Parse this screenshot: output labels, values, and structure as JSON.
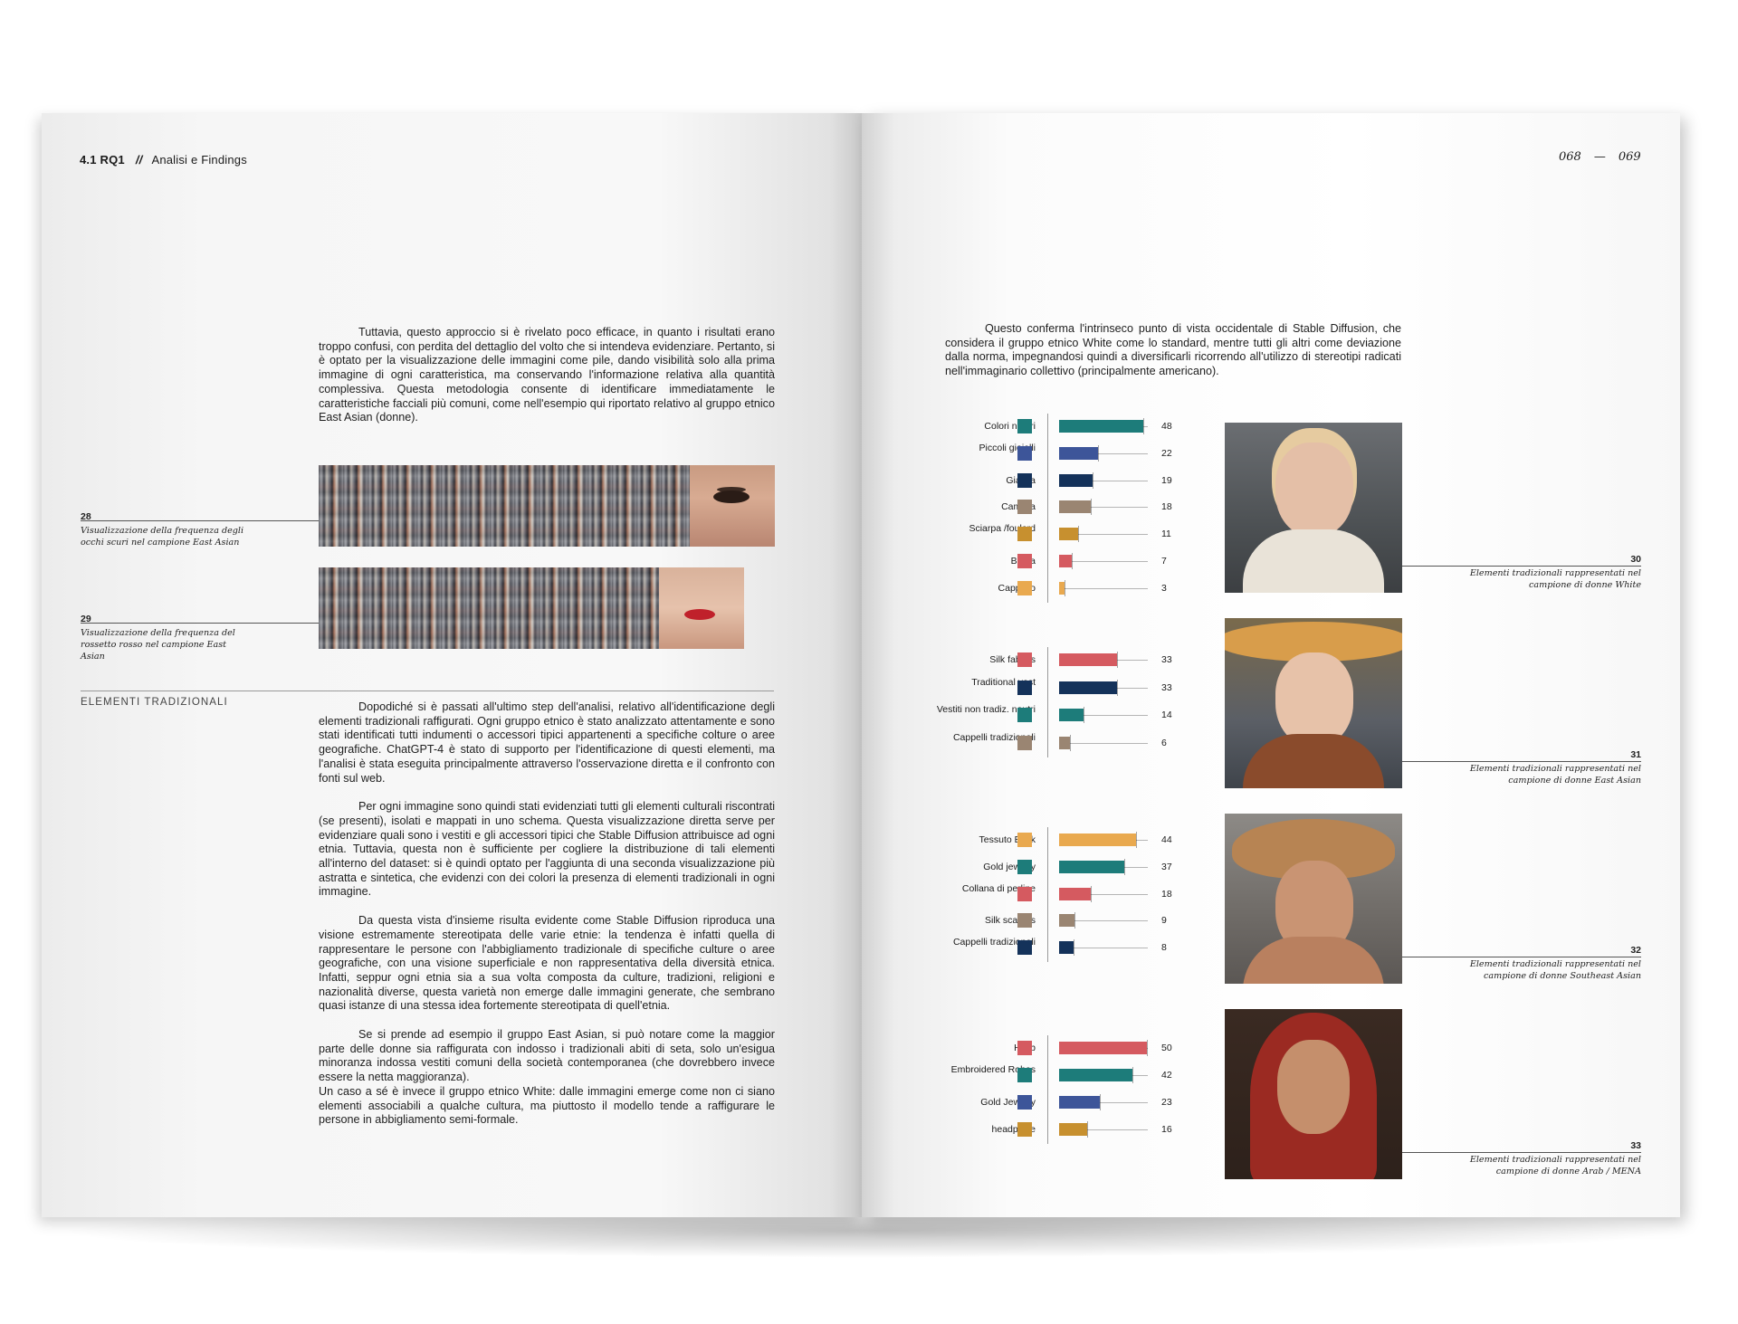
{
  "header": {
    "chapter": "4.1 RQ1",
    "separator": "//",
    "section": "Analisi e Findings",
    "page_left": "068",
    "page_sep": "—",
    "page_right": "069"
  },
  "left": {
    "intro": "Tuttavia, questo approccio si è rivelato poco efficace, in quanto i risultati erano troppo confusi, con perdita del dettaglio del volto che si intendeva evidenziare. Pertanto, si è optato per la visualizzazione delle immagini come pile, dando visibilità solo alla prima immagine di ogni caratteristica, ma conservando l'informazione relativa alla quantità complessiva. Questa metodologia consente di identificare immediatamente le caratteristiche facciali più comuni, come nell'esempio qui riportato relativo al gruppo etnico East Asian (donne).",
    "figures": [
      {
        "number": "28",
        "caption": "Visualizzazione della frequenza degli occhi scuri nel campione East Asian"
      },
      {
        "number": "29",
        "caption": "Visualizzazione della frequenza del rossetto rosso nel campione East Asian"
      }
    ],
    "section_label": "ELEMENTI TRADIZIONALI",
    "paragraphs": [
      "Dopodiché si è passati all'ultimo step dell'analisi, relativo all'identificazione degli elementi tradizionali raffigurati. Ogni gruppo etnico è stato analizzato attentamente e sono stati identificati tutti indumenti o accessori tipici appartenenti a specifiche colture o aree geografiche. ChatGPT-4 è stato di supporto per l'identificazione di questi elementi, ma l'analisi è stata eseguita principalmente attraverso l'osservazione diretta e il confronto con fonti sul web.",
      "Per ogni immagine sono quindi stati evidenziati tutti gli elementi culturali riscontrati (se presenti), isolati e mappati in uno schema. Questa visualizzazione diretta serve per evidenziare quali sono i vestiti e gli accessori tipici che Stable Diffusion attribuisce ad ogni etnia. Tuttavia, questa non è sufficiente per cogliere la distribuzione di tali elementi all'interno del dataset: si è quindi optato per l'aggiunta di una seconda visualizzazione più astratta e sintetica, che evidenzi con dei colori la presenza di elementi tradizionali in ogni immagine.",
      "Da questa vista d'insieme risulta evidente come Stable Diffusion riproduca una visione estremamente stereotipata delle varie etnie: la tendenza è infatti quella di rappresentare le persone con l'abbigliamento tradizionale di specifiche culture o aree geografiche, con una visione superficiale e non rappresentativa della diversità etnica. Infatti, seppur ogni etnia sia a sua volta composta da culture, tradizioni, religioni e nazionalità diverse, questa varietà non emerge dalle immagini generate, che sembrano quasi istanze di una stessa idea fortemente stereotipata di quell'etnia.",
      "Se si prende ad esempio il gruppo East Asian, si può notare come la maggior parte delle donne sia raffigurata con indosso i tradizionali abiti di seta, solo un'esigua minoranza indossa vestiti comuni della società contemporanea (che dovrebbero invece essere la netta maggioranza).",
      "Un caso a sé è invece il gruppo etnico White: dalle immagini emerge come non ci siano elementi associabili a qualche cultura, ma piuttosto il modello tende a raffigurare le persone in abbigliamento semi-formale."
    ]
  },
  "right": {
    "intro": "Questo conferma l'intrinseco punto di vista occidentale di Stable Diffusion, che considera il gruppo etnico White come lo standard, mentre tutti gli altri come deviazione dalla norma, impegnandosi quindi a diversificarli ricorrendo all'utilizzo di stereotipi radicati nell'immaginario collettivo (principalmente americano).",
    "captions": [
      {
        "number": "30",
        "caption": "Elementi tradizionali rappresentati nel campione di donne White"
      },
      {
        "number": "31",
        "caption": "Elementi tradizionali rappresentati nel campione di donne East Asian"
      },
      {
        "number": "32",
        "caption": "Elementi tradizionali rappresentati nel campione di donne Southeast Asian"
      },
      {
        "number": "33",
        "caption": "Elementi tradizionali rappresentati nel campione di donne Arab / MENA"
      }
    ]
  },
  "chart_data": [
    {
      "type": "bar",
      "orientation": "horizontal",
      "categories": [
        "Colori neutri",
        "Piccoli gioielli",
        "Giacca",
        "Camicia",
        "Sciarpa /foulard",
        "Borsa",
        "Cappello"
      ],
      "values": [
        48,
        22,
        19,
        18,
        11,
        7,
        3
      ],
      "colors": [
        "#1d7c7a",
        "#3d5599",
        "#14325a",
        "#9a8572",
        "#c7902f",
        "#d55a60",
        "#e9a94f"
      ],
      "xlim": [
        0,
        50
      ]
    },
    {
      "type": "bar",
      "orientation": "horizontal",
      "categories": [
        "Silk fabrics",
        "Traditional vest",
        "Vestiti non tradiz. neutri",
        "Cappelli tradizionali"
      ],
      "values": [
        33,
        33,
        14,
        6
      ],
      "colors": [
        "#d55a60",
        "#14325a",
        "#1d7c7a",
        "#9a8572"
      ],
      "xlim": [
        0,
        50
      ]
    },
    {
      "type": "bar",
      "orientation": "horizontal",
      "categories": [
        "Tessuto Batik",
        "Gold jewelry",
        "Collana di perline",
        "Silk scarves",
        "Cappelli tradizionali"
      ],
      "values": [
        44,
        37,
        18,
        9,
        8
      ],
      "colors": [
        "#e9a94f",
        "#1d7c7a",
        "#d55a60",
        "#9a8572",
        "#14325a"
      ],
      "xlim": [
        0,
        50
      ]
    },
    {
      "type": "bar",
      "orientation": "horizontal",
      "categories": [
        "Hijab",
        "Embroidered Robes",
        "Gold Jewelry",
        "headpiece"
      ],
      "values": [
        50,
        42,
        23,
        16
      ],
      "colors": [
        "#d55a60",
        "#1d7c7a",
        "#3d5599",
        "#c7902f"
      ],
      "xlim": [
        0,
        50
      ]
    }
  ]
}
